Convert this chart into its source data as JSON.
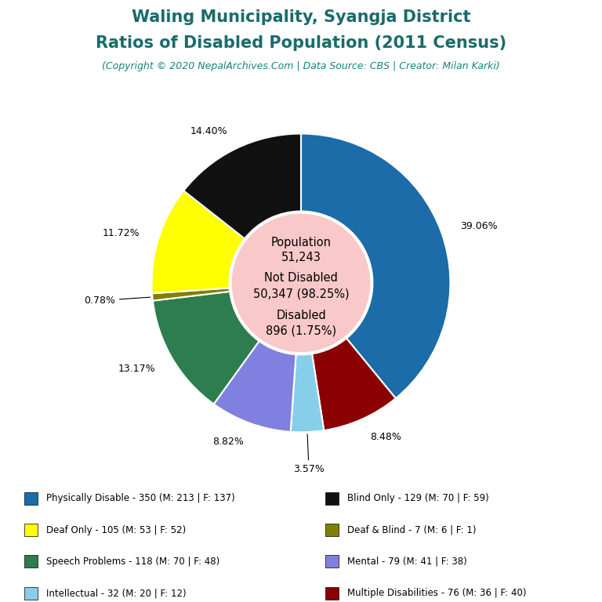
{
  "title_line1": "Waling Municipality, Syangja District",
  "title_line2": "Ratios of Disabled Population (2011 Census)",
  "subtitle": "(Copyright © 2020 NepalArchives.Com | Data Source: CBS | Creator: Milan Karki)",
  "title_color": "#1a6b6b",
  "subtitle_color": "#1a8080",
  "center_bg": "#f9c8c8",
  "slices": [
    {
      "label": "Physically Disable",
      "value": 350,
      "pct": "39.06%",
      "color": "#1b6ca8"
    },
    {
      "label": "Multiple Disabilities",
      "value": 76,
      "pct": "8.48%",
      "color": "#8b0000"
    },
    {
      "label": "Intellectual",
      "value": 32,
      "pct": "3.57%",
      "color": "#87ceeb"
    },
    {
      "label": "Mental",
      "value": 79,
      "pct": "8.82%",
      "color": "#8080e0"
    },
    {
      "label": "Speech Problems",
      "value": 118,
      "pct": "13.17%",
      "color": "#2e7d4f"
    },
    {
      "label": "Deaf & Blind",
      "value": 7,
      "pct": "0.78%",
      "color": "#808000"
    },
    {
      "label": "Deaf Only",
      "value": 105,
      "pct": "11.72%",
      "color": "#ffff00"
    },
    {
      "label": "Blind Only",
      "value": 129,
      "pct": "14.40%",
      "color": "#111111"
    }
  ],
  "legend_left_colors": [
    "#1b6ca8",
    "#ffff00",
    "#2e7d4f",
    "#87ceeb"
  ],
  "legend_left_labels": [
    "Physically Disable - 350 (M: 213 | F: 137)",
    "Deaf Only - 105 (M: 53 | F: 52)",
    "Speech Problems - 118 (M: 70 | F: 48)",
    "Intellectual - 32 (M: 20 | F: 12)"
  ],
  "legend_right_colors": [
    "#111111",
    "#808000",
    "#8080e0",
    "#8b0000"
  ],
  "legend_right_labels": [
    "Blind Only - 129 (M: 70 | F: 59)",
    "Deaf & Blind - 7 (M: 6 | F: 1)",
    "Mental - 79 (M: 41 | F: 38)",
    "Multiple Disabilities - 76 (M: 36 | F: 40)"
  ]
}
